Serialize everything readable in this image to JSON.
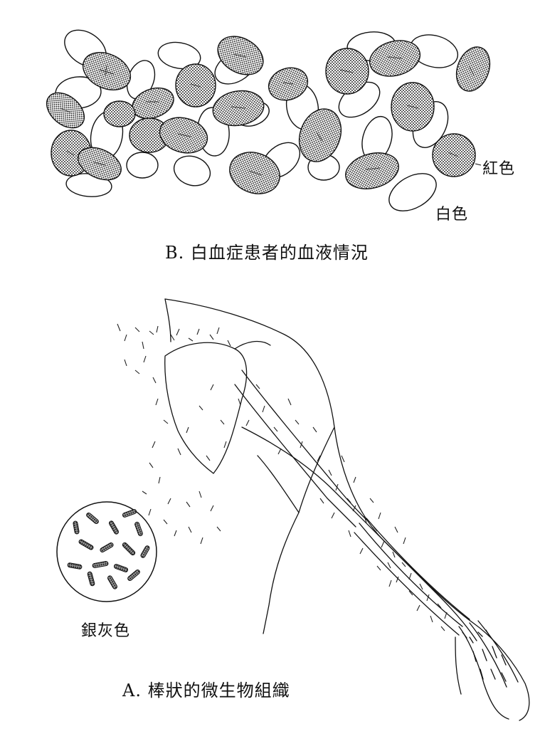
{
  "figure_b": {
    "caption": "B. 白血症患者的血液情況",
    "label_red": "紅色",
    "label_white": "白色"
  },
  "figure_a": {
    "caption": "A. 棒狀的微生物組織",
    "label_grey": "銀灰色"
  }
}
